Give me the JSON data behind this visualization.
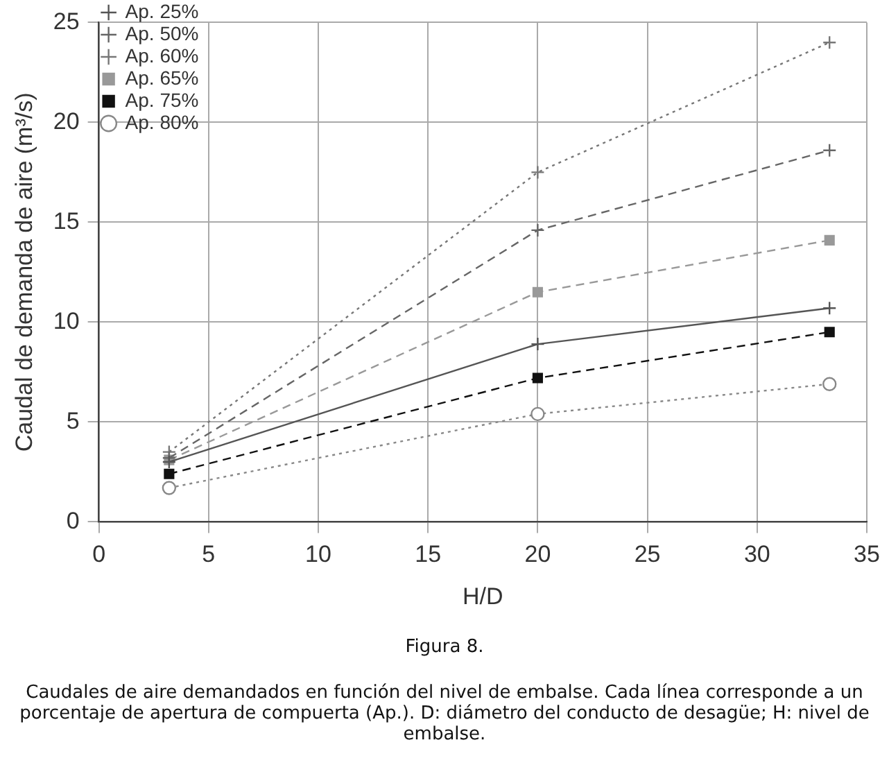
{
  "chart_data": {
    "type": "line",
    "xlabel": "H/D",
    "ylabel": "Caudal de demanda de aire (m³/s)",
    "x": [
      3.2,
      20,
      33.3
    ],
    "series": [
      {
        "name": "Ap. 25%",
        "color": "#555555",
        "marker": "cross",
        "line_style": "solid",
        "values": [
          3.0,
          8.9,
          10.7
        ]
      },
      {
        "name": "Ap. 50%",
        "color": "#666666",
        "marker": "cross",
        "line_style": "dashed",
        "values": [
          3.2,
          14.6,
          18.6
        ]
      },
      {
        "name": "Ap. 60%",
        "color": "#777777",
        "marker": "cross",
        "line_style": "dotted",
        "values": [
          3.5,
          17.5,
          24.0
        ]
      },
      {
        "name": "Ap. 65%",
        "color": "#999999",
        "marker": "square",
        "line_style": "dashed",
        "values": [
          3.1,
          11.5,
          14.1
        ]
      },
      {
        "name": "Ap. 75%",
        "color": "#111111",
        "marker": "square",
        "line_style": "dashed",
        "values": [
          2.4,
          7.2,
          9.5
        ]
      },
      {
        "name": "Ap. 80%",
        "color": "#888888",
        "marker": "circle",
        "line_style": "dotted",
        "values": [
          1.7,
          5.4,
          6.9
        ]
      }
    ],
    "xlim": [
      0,
      35
    ],
    "xticks": [
      0,
      5,
      10,
      15,
      20,
      25,
      30,
      35
    ],
    "ylim": [
      0,
      25
    ],
    "yticks": [
      0,
      5,
      10,
      15,
      20,
      25
    ],
    "grid": true,
    "legend": "top left",
    "annotations": [
      "Figura 8.",
      "Caudales de aire demandados en función del nivel de embalse. Cada línea corresponde a un porcentaje de apertura de compuerta (Ap.). D: diámetro del conducto de desagüe; H: nivel de embalse."
    ]
  }
}
